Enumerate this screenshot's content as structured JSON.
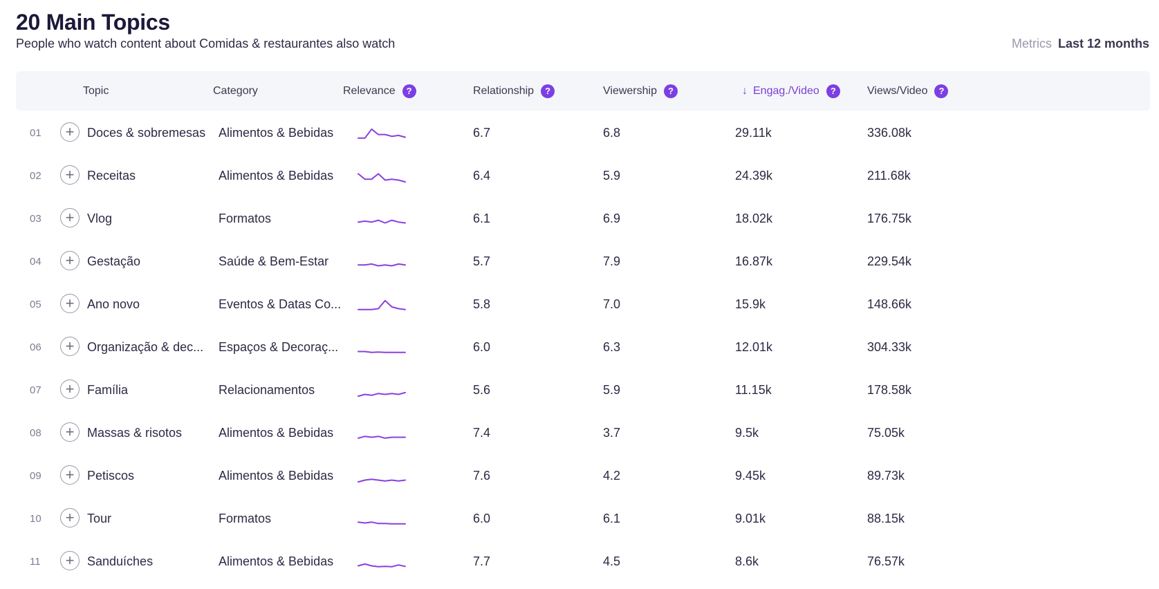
{
  "header": {
    "title": "20 Main Topics",
    "subtitle": "People who watch content about Comidas & restaurantes also watch",
    "metrics_label": "Metrics",
    "metrics_period": "Last 12 months"
  },
  "columns": {
    "topic": "Topic",
    "category": "Category",
    "relevance": "Relevance",
    "relationship": "Relationship",
    "viewership": "Viewership",
    "engagement": "Engag./Video",
    "views": "Views/Video",
    "help_glyph": "?",
    "sort_glyph": "↓",
    "add_glyph": "+"
  },
  "colors": {
    "accent": "#7b3fe4",
    "sparkline": "#8a3fe0",
    "header_bg": "#f5f6f9"
  },
  "rows": [
    {
      "num": "01",
      "topic": "Doces & sobremesas",
      "category": "Alimentos & Bebidas",
      "relationship": "6.7",
      "viewership": "6.8",
      "engagement": "29.11k",
      "views": "336.08k",
      "spark": [
        0.8,
        0.8,
        0.3,
        0.6,
        0.6,
        0.7,
        0.65,
        0.75
      ]
    },
    {
      "num": "02",
      "topic": "Receitas",
      "category": "Alimentos & Bebidas",
      "relationship": "6.4",
      "viewership": "5.9",
      "engagement": "24.39k",
      "views": "211.68k",
      "spark": [
        0.4,
        0.7,
        0.7,
        0.4,
        0.75,
        0.7,
        0.75,
        0.85
      ]
    },
    {
      "num": "03",
      "topic": "Vlog",
      "category": "Formatos",
      "relationship": "6.1",
      "viewership": "6.9",
      "engagement": "18.02k",
      "views": "176.75k",
      "spark": [
        0.7,
        0.65,
        0.7,
        0.6,
        0.75,
        0.6,
        0.7,
        0.75
      ]
    },
    {
      "num": "04",
      "topic": "Gestação",
      "category": "Saúde & Bem-Estar",
      "relationship": "5.7",
      "viewership": "7.9",
      "engagement": "16.87k",
      "views": "229.54k",
      "spark": [
        0.7,
        0.7,
        0.65,
        0.75,
        0.7,
        0.75,
        0.65,
        0.7
      ]
    },
    {
      "num": "05",
      "topic": "Ano novo",
      "category": "Eventos & Datas Co...",
      "relationship": "5.8",
      "viewership": "7.0",
      "engagement": "15.9k",
      "views": "148.66k",
      "spark": [
        0.8,
        0.8,
        0.8,
        0.75,
        0.3,
        0.65,
        0.75,
        0.8
      ]
    },
    {
      "num": "06",
      "topic": "Organização & dec...",
      "category": "Espaços & Decoraç...",
      "relationship": "6.0",
      "viewership": "6.3",
      "engagement": "12.01k",
      "views": "304.33k",
      "spark": [
        0.75,
        0.75,
        0.8,
        0.78,
        0.8,
        0.8,
        0.8,
        0.8
      ]
    },
    {
      "num": "07",
      "topic": "Família",
      "category": "Relacionamentos",
      "relationship": "5.6",
      "viewership": "5.9",
      "engagement": "11.15k",
      "views": "178.58k",
      "spark": [
        0.85,
        0.75,
        0.8,
        0.7,
        0.75,
        0.7,
        0.75,
        0.65
      ]
    },
    {
      "num": "08",
      "topic": "Massas & risotos",
      "category": "Alimentos & Bebidas",
      "relationship": "7.4",
      "viewership": "3.7",
      "engagement": "9.5k",
      "views": "75.05k",
      "spark": [
        0.8,
        0.7,
        0.75,
        0.7,
        0.8,
        0.75,
        0.75,
        0.75
      ]
    },
    {
      "num": "09",
      "topic": "Petiscos",
      "category": "Alimentos & Bebidas",
      "relationship": "7.6",
      "viewership": "4.2",
      "engagement": "9.45k",
      "views": "89.73k",
      "spark": [
        0.85,
        0.75,
        0.7,
        0.75,
        0.8,
        0.75,
        0.8,
        0.75
      ]
    },
    {
      "num": "10",
      "topic": "Tour",
      "category": "Formatos",
      "relationship": "6.0",
      "viewership": "6.1",
      "engagement": "9.01k",
      "views": "88.15k",
      "spark": [
        0.7,
        0.75,
        0.7,
        0.78,
        0.78,
        0.8,
        0.8,
        0.8
      ]
    },
    {
      "num": "11",
      "topic": "Sanduíches",
      "category": "Alimentos & Bebidas",
      "relationship": "7.7",
      "viewership": "4.5",
      "engagement": "8.6k",
      "views": "76.57k",
      "spark": [
        0.75,
        0.65,
        0.75,
        0.8,
        0.78,
        0.8,
        0.7,
        0.78
      ]
    }
  ]
}
